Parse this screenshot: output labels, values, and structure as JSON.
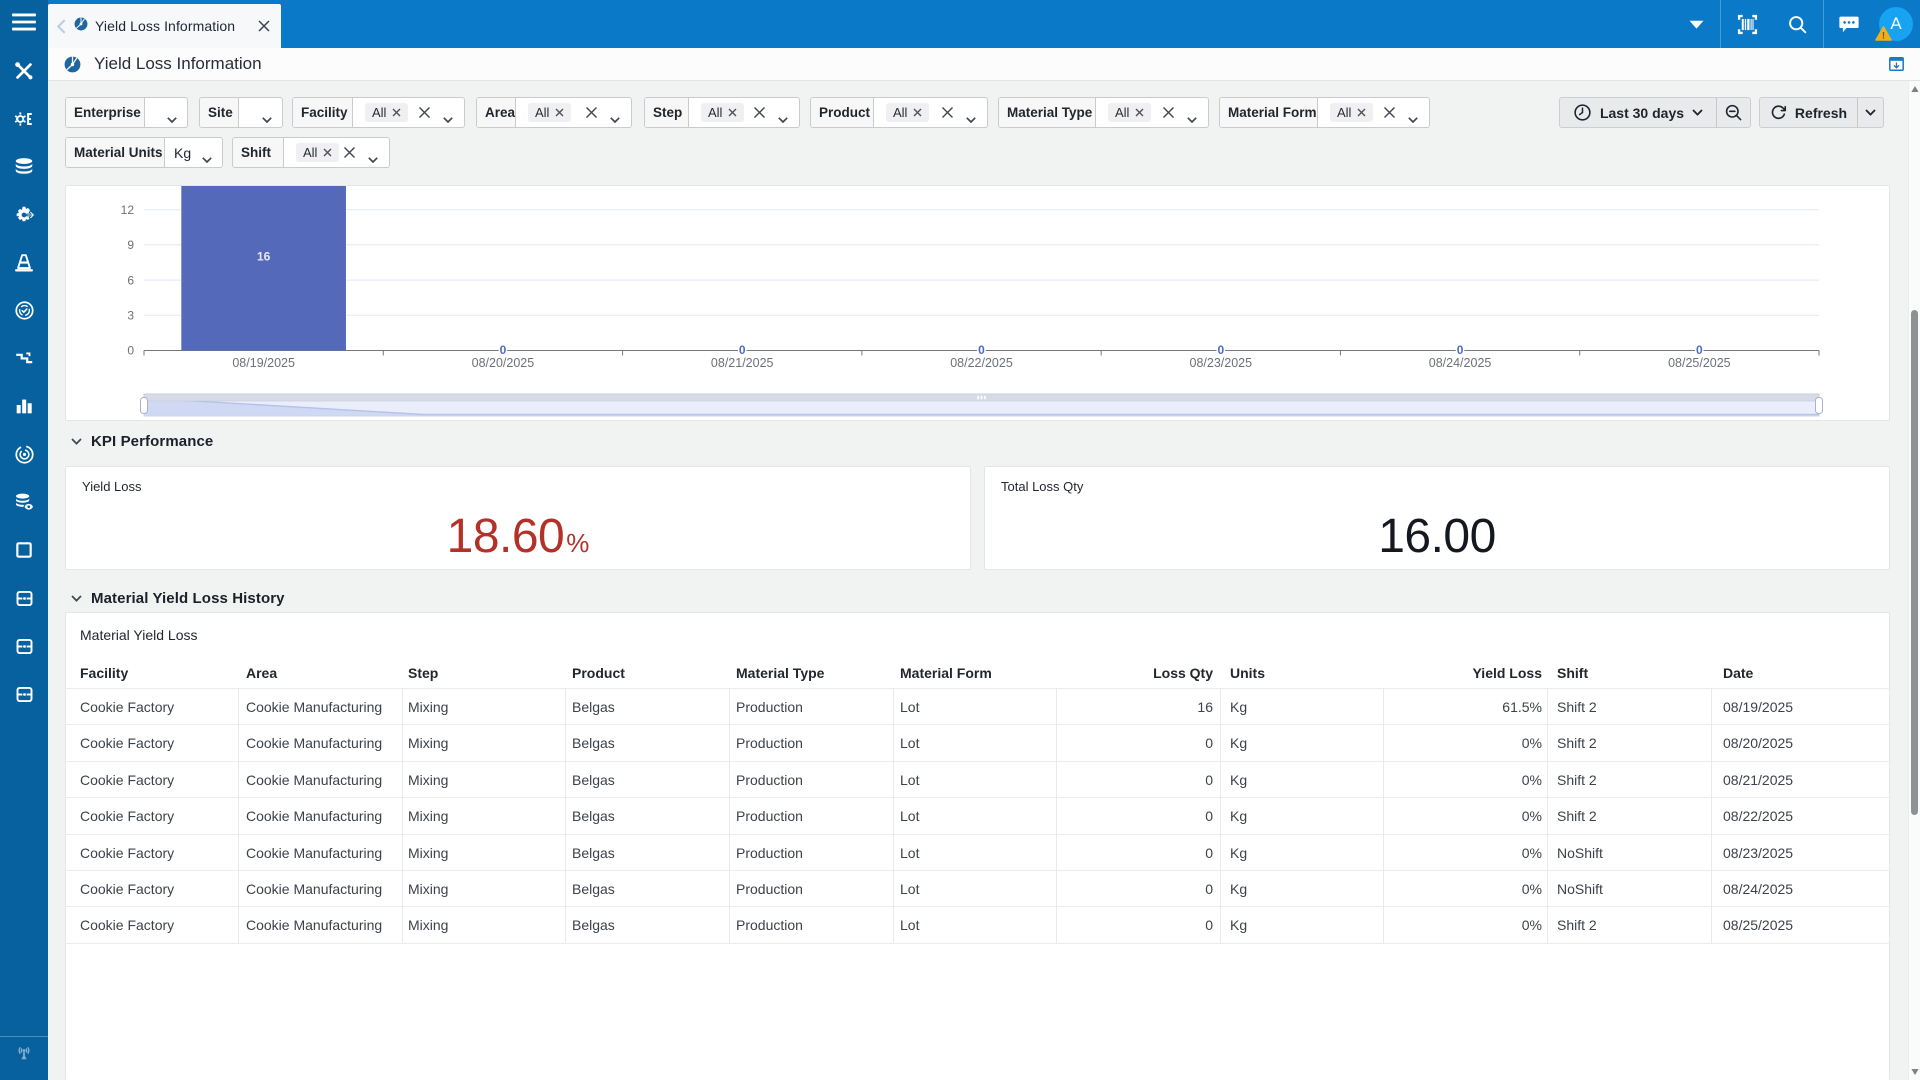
{
  "topbar": {
    "tab": {
      "title": "Yield Loss Information"
    },
    "icons": [
      "caret-down",
      "barcode-scanner",
      "search",
      "chat"
    ],
    "avatar": {
      "initial": "A"
    }
  },
  "app_header": {
    "title": "Yield Loss Information"
  },
  "filters": {
    "row1": [
      {
        "label": "Enterprise",
        "kind": "select"
      },
      {
        "label": "Site",
        "kind": "select"
      },
      {
        "label": "Facility",
        "kind": "multi",
        "chip": "All"
      },
      {
        "label": "Area",
        "kind": "multi",
        "chip": "All"
      },
      {
        "label": "Step",
        "kind": "multi",
        "chip": "All"
      },
      {
        "label": "Product",
        "kind": "multi",
        "chip": "All"
      },
      {
        "label": "Material Type",
        "kind": "multi",
        "chip": "All"
      },
      {
        "label": "Material Form",
        "kind": "multi",
        "chip": "All"
      }
    ],
    "row2": [
      {
        "label": "Material Units",
        "kind": "value",
        "value": "Kg"
      },
      {
        "label": "Shift",
        "kind": "multi",
        "chip": "All"
      }
    ],
    "time_range_label": "Last 30 days",
    "refresh_label": "Refresh"
  },
  "chart_data": {
    "type": "bar",
    "categories": [
      "08/19/2025",
      "08/20/2025",
      "08/21/2025",
      "08/22/2025",
      "08/23/2025",
      "08/24/2025",
      "08/25/2025"
    ],
    "values": [
      16,
      0,
      0,
      0,
      0,
      0,
      0
    ],
    "title": "",
    "xlabel": "",
    "ylabel": "",
    "yticks": [
      0,
      3,
      6,
      9,
      12
    ],
    "ylim": [
      0,
      14
    ],
    "bar_color": "#5569bb",
    "grid": true,
    "legend": false,
    "datazoom": true
  },
  "kpi": {
    "section_title": "KPI Performance",
    "cards": [
      {
        "label": "Yield Loss",
        "value": "18.60",
        "suffix": "%",
        "color": "#b23129"
      },
      {
        "label": "Total Loss Qty",
        "value": "16.00",
        "suffix": "",
        "color": "#15191f"
      }
    ]
  },
  "history": {
    "section_title": "Material Yield Loss History",
    "table_title": "Material Yield Loss",
    "columns": [
      "Facility",
      "Area",
      "Step",
      "Product",
      "Material Type",
      "Material Form",
      "Loss Qty",
      "Units",
      "Yield Loss",
      "Shift",
      "Date"
    ],
    "rows": [
      [
        "Cookie Factory",
        "Cookie Manufacturing",
        "Mixing",
        "Belgas",
        "Production",
        "Lot",
        "16",
        "Kg",
        "61.5%",
        "Shift 2",
        "08/19/2025"
      ],
      [
        "Cookie Factory",
        "Cookie Manufacturing",
        "Mixing",
        "Belgas",
        "Production",
        "Lot",
        "0",
        "Kg",
        "0%",
        "Shift 2",
        "08/20/2025"
      ],
      [
        "Cookie Factory",
        "Cookie Manufacturing",
        "Mixing",
        "Belgas",
        "Production",
        "Lot",
        "0",
        "Kg",
        "0%",
        "Shift 2",
        "08/21/2025"
      ],
      [
        "Cookie Factory",
        "Cookie Manufacturing",
        "Mixing",
        "Belgas",
        "Production",
        "Lot",
        "0",
        "Kg",
        "0%",
        "Shift 2",
        "08/22/2025"
      ],
      [
        "Cookie Factory",
        "Cookie Manufacturing",
        "Mixing",
        "Belgas",
        "Production",
        "Lot",
        "0",
        "Kg",
        "0%",
        "NoShift",
        "08/23/2025"
      ],
      [
        "Cookie Factory",
        "Cookie Manufacturing",
        "Mixing",
        "Belgas",
        "Production",
        "Lot",
        "0",
        "Kg",
        "0%",
        "NoShift",
        "08/24/2025"
      ],
      [
        "Cookie Factory",
        "Cookie Manufacturing",
        "Mixing",
        "Belgas",
        "Production",
        "Lot",
        "0",
        "Kg",
        "0%",
        "Shift 2",
        "08/25/2025"
      ]
    ]
  },
  "colors": {
    "sidebar": "#07619e",
    "topbar": "#0979c8",
    "accent_bar": "#5569bb",
    "kpi_red": "#b23129",
    "kpi_dark": "#15191f"
  }
}
